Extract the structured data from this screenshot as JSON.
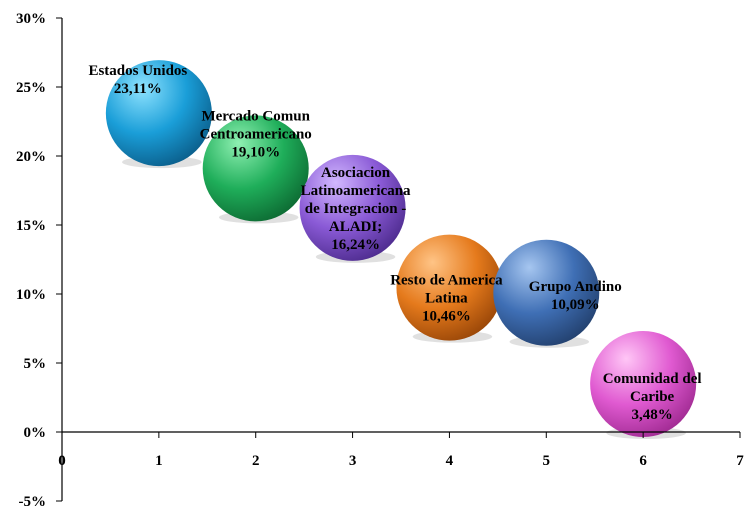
{
  "chart_data": {
    "type": "bubble",
    "title": "",
    "xlabel": "",
    "ylabel": "",
    "xlim": [
      0,
      7
    ],
    "ylim": [
      -5,
      30
    ],
    "x_ticks": [
      "0",
      "1",
      "2",
      "3",
      "4",
      "5",
      "6",
      "7"
    ],
    "y_ticks": [
      "-5%",
      "0%",
      "5%",
      "10%",
      "15%",
      "20%",
      "25%",
      "30%"
    ],
    "grid": false,
    "legend": "none",
    "points": [
      {
        "x": 1,
        "y": 23.11,
        "label_lines": [
          "Estados Unidos",
          "23,11%"
        ],
        "color": "#1a9ed8",
        "highlight": "#8fe3ff",
        "shade": "#0b5f8c"
      },
      {
        "x": 2,
        "y": 19.1,
        "label_lines": [
          "Mercado Comun",
          "Centroamericano",
          "19,10%"
        ],
        "color": "#1fae5a",
        "highlight": "#8ff0b2",
        "shade": "#0d6b33"
      },
      {
        "x": 3,
        "y": 16.24,
        "label_lines": [
          "Asociacion",
          "Latinoamericana",
          "de Integracion -",
          "ALADI;",
          "16,24%"
        ],
        "color": "#8a5ad6",
        "highlight": "#d2b8ff",
        "shade": "#4e2c8f"
      },
      {
        "x": 4,
        "y": 10.46,
        "label_lines": [
          "Resto de America",
          "Latina",
          "10,46%"
        ],
        "color": "#e57a1c",
        "highlight": "#ffc486",
        "shade": "#9a4708"
      },
      {
        "x": 5,
        "y": 10.09,
        "label_lines": [
          "Grupo Andino",
          "10,09%"
        ],
        "color": "#3f6fb5",
        "highlight": "#a6c6f0",
        "shade": "#23416f"
      },
      {
        "x": 6,
        "y": 3.48,
        "label_lines": [
          "Comunidad del",
          "Caribe",
          "3,48%"
        ],
        "color": "#e05ad1",
        "highlight": "#ffc6f6",
        "shade": "#a12b93"
      }
    ]
  }
}
